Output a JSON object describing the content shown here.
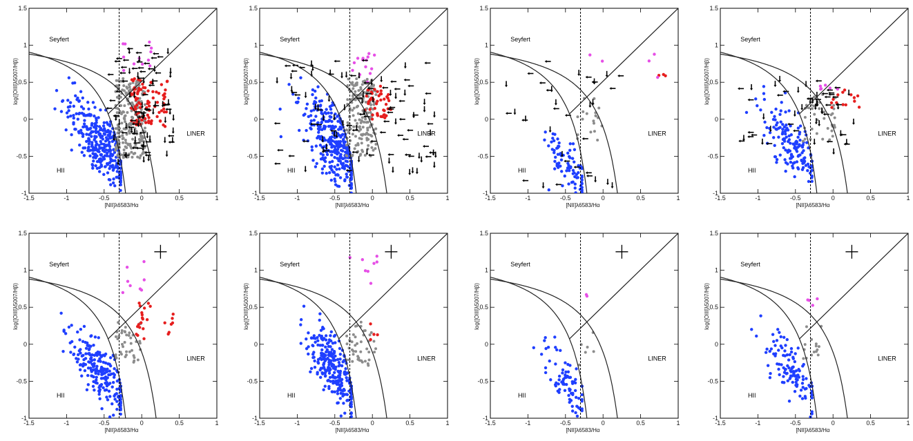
{
  "figure": {
    "colors": {
      "hii": "#1f3fff",
      "composite": "#8c8c8c",
      "seyfert": "#e64fe6",
      "liner": "#e61e1e",
      "upper_limit": "#000000",
      "line": "#222222"
    }
  },
  "chart_data": [
    {
      "type": "scatter",
      "panel": "top-1",
      "xlabel": "[NII]λ6583/Hα",
      "ylabel": "log([OIII]λ5007/Hβ)",
      "xlim": [
        -1.5,
        1
      ],
      "ylim": [
        -1,
        1.5
      ],
      "xticks": [
        "-1.5",
        "-1",
        "-0.5",
        "0",
        "0.5",
        "1"
      ],
      "yticks": [
        "-1",
        "-0.5",
        "0",
        "0.5",
        "1",
        "1.5"
      ],
      "region_labels": {
        "seyfert": "Seyfert",
        "liner": "LINER",
        "hii": "HII"
      },
      "error_cross": false,
      "limit_markers": true,
      "counts": {
        "hii": 340,
        "composite": 240,
        "seyfert": 12,
        "liner": 90,
        "limits": 95
      },
      "hii_cloud": {
        "x_center": -0.55,
        "x_spread": 0.22,
        "y_at_xmin": 0.7,
        "y_slope": 1.25,
        "y_scatter": 0.22
      },
      "composite_cloud": {
        "x": [
          -0.35,
          0.05
        ],
        "y": [
          -0.55,
          0.55
        ]
      },
      "seyfert_points": {
        "x": [
          -0.3,
          0.15
        ],
        "y": [
          0.6,
          1.2
        ]
      },
      "liner_cloud": {
        "x": [
          -0.15,
          0.35
        ],
        "y": [
          -0.1,
          0.55
        ]
      },
      "limits_cloud": {
        "x": [
          -0.4,
          0.45
        ],
        "y": [
          -0.6,
          1.0
        ]
      }
    },
    {
      "type": "scatter",
      "panel": "top-2",
      "xlabel": "[NII]λ6583/Hα",
      "ylabel": "log([OIII]λ5007/Hβ)",
      "xlim": [
        -1.5,
        1
      ],
      "ylim": [
        -1,
        1.5
      ],
      "xticks": [
        "-1.5",
        "-1",
        "-0.5",
        "0",
        "0.5",
        "1"
      ],
      "yticks": [
        "-1",
        "-0.5",
        "0",
        "0.5",
        "1",
        "1.5"
      ],
      "region_labels": {
        "seyfert": "Seyfert",
        "liner": "LINER",
        "hii": "HII"
      },
      "error_cross": false,
      "limit_markers": true,
      "counts": {
        "hii": 380,
        "composite": 180,
        "seyfert": 14,
        "liner": 45,
        "limits": 110
      },
      "hii_cloud": {
        "x_center": -0.5,
        "x_spread": 0.22,
        "y_at_xmin": 0.75,
        "y_slope": 1.3,
        "y_scatter": 0.25
      },
      "composite_cloud": {
        "x": [
          -0.35,
          0.05
        ],
        "y": [
          -0.5,
          0.55
        ]
      },
      "seyfert_points": {
        "x": [
          -0.3,
          0.05
        ],
        "y": [
          0.45,
          0.9
        ]
      },
      "liner_cloud": {
        "x": [
          -0.1,
          0.25
        ],
        "y": [
          0.0,
          0.45
        ]
      },
      "limits_cloud": {
        "x": [
          -1.3,
          0.85
        ],
        "y": [
          -0.7,
          0.8
        ]
      }
    },
    {
      "type": "scatter",
      "panel": "top-3",
      "xlabel": "[NII]λ6583/Hα",
      "ylabel": "log([OIII]λ5007/Hβ)",
      "xlim": [
        -1.5,
        1
      ],
      "ylim": [
        -1,
        1.5
      ],
      "xticks": [
        "-1.5",
        "-1",
        "-0.5",
        "0",
        "0.5",
        "1"
      ],
      "yticks": [
        "-1",
        "-0.5",
        "0",
        "0.5",
        "1",
        "1.5"
      ],
      "region_labels": {
        "seyfert": "Seyfert",
        "liner": "LINER",
        "hii": "HII"
      },
      "error_cross": false,
      "limit_markers": true,
      "counts": {
        "hii": 90,
        "composite": 20,
        "seyfert": 5,
        "liner": 3,
        "limits": 35
      },
      "hii_cloud": {
        "x_center": -0.45,
        "x_spread": 0.18,
        "y_at_xmin": 0.6,
        "y_slope": 1.4,
        "y_scatter": 0.18
      },
      "composite_cloud": {
        "x": [
          -0.35,
          0.0
        ],
        "y": [
          -0.3,
          0.3
        ]
      },
      "seyfert_points": {
        "x": [
          -0.2,
          0.8
        ],
        "y": [
          0.55,
          0.9
        ]
      },
      "liner_cloud": {
        "x": [
          0.7,
          0.85
        ],
        "y": [
          0.55,
          0.65
        ]
      },
      "limits_cloud": {
        "x": [
          -1.3,
          0.3
        ],
        "y": [
          -0.9,
          0.8
        ]
      }
    },
    {
      "type": "scatter",
      "panel": "top-4",
      "xlabel": "[NII]λ6583/Hα",
      "ylabel": "log([OIII]λ5007/Hβ)",
      "xlim": [
        -1.5,
        1
      ],
      "ylim": [
        -1,
        1.5
      ],
      "xticks": [
        "-1.5",
        "-1",
        "-0.5",
        "0",
        "0.5",
        "1"
      ],
      "yticks": [
        "-1",
        "-0.5",
        "0",
        "0.5",
        "1",
        "1.5"
      ],
      "region_labels": {
        "seyfert": "Seyfert",
        "liner": "LINER",
        "hii": "HII"
      },
      "error_cross": false,
      "limit_markers": true,
      "counts": {
        "hii": 160,
        "composite": 40,
        "seyfert": 6,
        "liner": 14,
        "limits": 55
      },
      "hii_cloud": {
        "x_center": -0.55,
        "x_spread": 0.22,
        "y_at_xmin": 0.65,
        "y_slope": 1.2,
        "y_scatter": 0.2
      },
      "composite_cloud": {
        "x": [
          -0.4,
          0.05
        ],
        "y": [
          -0.3,
          0.35
        ]
      },
      "seyfert_points": {
        "x": [
          -0.3,
          0.1
        ],
        "y": [
          0.4,
          0.55
        ]
      },
      "liner_cloud": {
        "x": [
          -0.05,
          0.35
        ],
        "y": [
          0.1,
          0.4
        ]
      },
      "limits_cloud": {
        "x": [
          -1.2,
          0.3
        ],
        "y": [
          -0.5,
          0.6
        ]
      }
    },
    {
      "type": "scatter",
      "panel": "bottom-1",
      "xlabel": "[NII]λ6583/Hα",
      "ylabel": "log([OIII]λ5007/Hβ)",
      "xlim": [
        -1.5,
        1
      ],
      "ylim": [
        -1,
        1.5
      ],
      "xticks": [
        "-1.5",
        "-1",
        "-0.5",
        "0",
        "0.5",
        "1"
      ],
      "yticks": [
        "-1",
        "-0.5",
        "0",
        "0.5",
        "1",
        "1.5"
      ],
      "region_labels": {
        "seyfert": "Seyfert",
        "liner": "LINER",
        "hii": "HII"
      },
      "error_cross": true,
      "limit_markers": false,
      "counts": {
        "hii": 230,
        "composite": 40,
        "seyfert": 8,
        "liner": 25,
        "limits": 0
      },
      "hii_cloud": {
        "x_center": -0.55,
        "x_spread": 0.22,
        "y_at_xmin": 0.65,
        "y_slope": 1.3,
        "y_scatter": 0.2
      },
      "composite_cloud": {
        "x": [
          -0.35,
          0.0
        ],
        "y": [
          -0.25,
          0.3
        ]
      },
      "seyfert_points": {
        "x": [
          -0.3,
          0.05
        ],
        "y": [
          0.55,
          1.15
        ]
      },
      "liner_cloud": {
        "x": [
          -0.1,
          0.45
        ],
        "y": [
          0.05,
          0.6
        ]
      },
      "limits_cloud": {
        "x": [
          0,
          0
        ],
        "y": [
          0,
          0
        ]
      }
    },
    {
      "type": "scatter",
      "panel": "bottom-2",
      "xlabel": "[NII]λ6583/Hα",
      "ylabel": "log([OIII]λ5007/Hβ)",
      "xlim": [
        -1.5,
        1
      ],
      "ylim": [
        -1,
        1.5
      ],
      "xticks": [
        "-1.5",
        "-1",
        "-0.5",
        "0",
        "0.5",
        "1"
      ],
      "yticks": [
        "-1",
        "-0.5",
        "0",
        "0.5",
        "1",
        "1.5"
      ],
      "region_labels": {
        "seyfert": "Seyfert",
        "liner": "LINER",
        "hii": "HII"
      },
      "error_cross": true,
      "limit_markers": false,
      "counts": {
        "hii": 280,
        "composite": 45,
        "seyfert": 8,
        "liner": 4,
        "limits": 0
      },
      "hii_cloud": {
        "x_center": -0.5,
        "x_spread": 0.2,
        "y_at_xmin": 0.8,
        "y_slope": 1.35,
        "y_scatter": 0.2
      },
      "composite_cloud": {
        "x": [
          -0.35,
          0.05
        ],
        "y": [
          -0.3,
          0.3
        ]
      },
      "seyfert_points": {
        "x": [
          -0.3,
          0.1
        ],
        "y": [
          0.7,
          1.2
        ]
      },
      "liner_cloud": {
        "x": [
          -0.05,
          0.1
        ],
        "y": [
          0.0,
          0.3
        ]
      },
      "limits_cloud": {
        "x": [
          0,
          0
        ],
        "y": [
          0,
          0
        ]
      }
    },
    {
      "type": "scatter",
      "panel": "bottom-3",
      "xlabel": "[NII]λ6583/Hα",
      "ylabel": "log([OIII]λ5007/Hβ)",
      "xlim": [
        -1.5,
        1
      ],
      "ylim": [
        -1,
        1.5
      ],
      "xticks": [
        "-1.5",
        "-1",
        "-0.5",
        "0",
        "0.5",
        "1"
      ],
      "yticks": [
        "-1",
        "-0.5",
        "0",
        "0.5",
        "1",
        "1.5"
      ],
      "region_labels": {
        "seyfert": "Seyfert",
        "liner": "LINER",
        "hii": "HII"
      },
      "error_cross": true,
      "limit_markers": false,
      "counts": {
        "hii": 80,
        "composite": 6,
        "seyfert": 2,
        "liner": 0,
        "limits": 0
      },
      "hii_cloud": {
        "x_center": -0.5,
        "x_spread": 0.17,
        "y_at_xmin": 0.65,
        "y_slope": 1.35,
        "y_scatter": 0.18
      },
      "composite_cloud": {
        "x": [
          -0.35,
          -0.1
        ],
        "y": [
          -0.3,
          0.2
        ]
      },
      "seyfert_points": {
        "x": [
          -0.4,
          -0.05
        ],
        "y": [
          0.6,
          0.8
        ]
      },
      "liner_cloud": {
        "x": [
          0,
          0
        ],
        "y": [
          0,
          0
        ]
      },
      "limits_cloud": {
        "x": [
          0,
          0
        ],
        "y": [
          0,
          0
        ]
      }
    },
    {
      "type": "scatter",
      "panel": "bottom-4",
      "xlabel": "[NII]λ6583/Hα",
      "ylabel": "log([OIII]λ5007/Hβ)",
      "xlim": [
        -1.5,
        1
      ],
      "ylim": [
        -1,
        1.5
      ],
      "xticks": [
        "-1.5",
        "-1",
        "-0.5",
        "0",
        "0.5",
        "1"
      ],
      "yticks": [
        "-1",
        "-0.5",
        "0",
        "0.5",
        "1",
        "1.5"
      ],
      "region_labels": {
        "seyfert": "Seyfert",
        "liner": "LINER",
        "hii": "HII"
      },
      "error_cross": true,
      "limit_markers": false,
      "counts": {
        "hii": 120,
        "composite": 15,
        "seyfert": 4,
        "liner": 0,
        "limits": 0
      },
      "hii_cloud": {
        "x_center": -0.55,
        "x_spread": 0.2,
        "y_at_xmin": 0.7,
        "y_slope": 1.3,
        "y_scatter": 0.18
      },
      "composite_cloud": {
        "x": [
          -0.4,
          -0.1
        ],
        "y": [
          -0.2,
          0.25
        ]
      },
      "seyfert_points": {
        "x": [
          -0.35,
          -0.2
        ],
        "y": [
          0.5,
          0.65
        ]
      },
      "liner_cloud": {
        "x": [
          0,
          0
        ],
        "y": [
          0,
          0
        ]
      },
      "limits_cloud": {
        "x": [
          0,
          0
        ],
        "y": [
          0,
          0
        ]
      }
    }
  ]
}
